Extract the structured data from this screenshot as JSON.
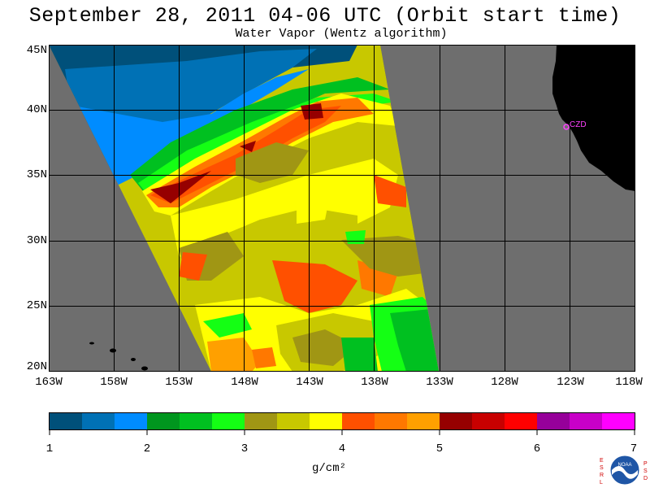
{
  "title": "September 28, 2011  04-06 UTC  (Orbit start time)",
  "subtitle": "Water Vapor (Wentz algorithm)",
  "map": {
    "lat_labels": [
      "45N",
      "40N",
      "35N",
      "30N",
      "25N",
      "20N"
    ],
    "lon_labels": [
      "163W",
      "158W",
      "153W",
      "148W",
      "143W",
      "138W",
      "133W",
      "128W",
      "123W",
      "118W"
    ],
    "station_label": "CZD",
    "colors": {
      "background_no_data": "#6e6e6e",
      "land": "#000000",
      "grid": "#000000",
      "station": "#ff40ff"
    }
  },
  "colorbar": {
    "ticks": [
      "1",
      "2",
      "3",
      "4",
      "5",
      "6",
      "7"
    ],
    "units": "g/cm²",
    "colors": [
      "#00507a",
      "#0071b5",
      "#008cff",
      "#00961e",
      "#00c020",
      "#14ff14",
      "#a09614",
      "#c8c800",
      "#ffff00",
      "#ff5000",
      "#ff7800",
      "#ffa000",
      "#960000",
      "#c80000",
      "#ff0000",
      "#96009a",
      "#c800c8",
      "#ff00ff"
    ]
  },
  "logo": {
    "left_letters": "ESRL",
    "right_letters": "PSD",
    "text": "NOAA"
  }
}
